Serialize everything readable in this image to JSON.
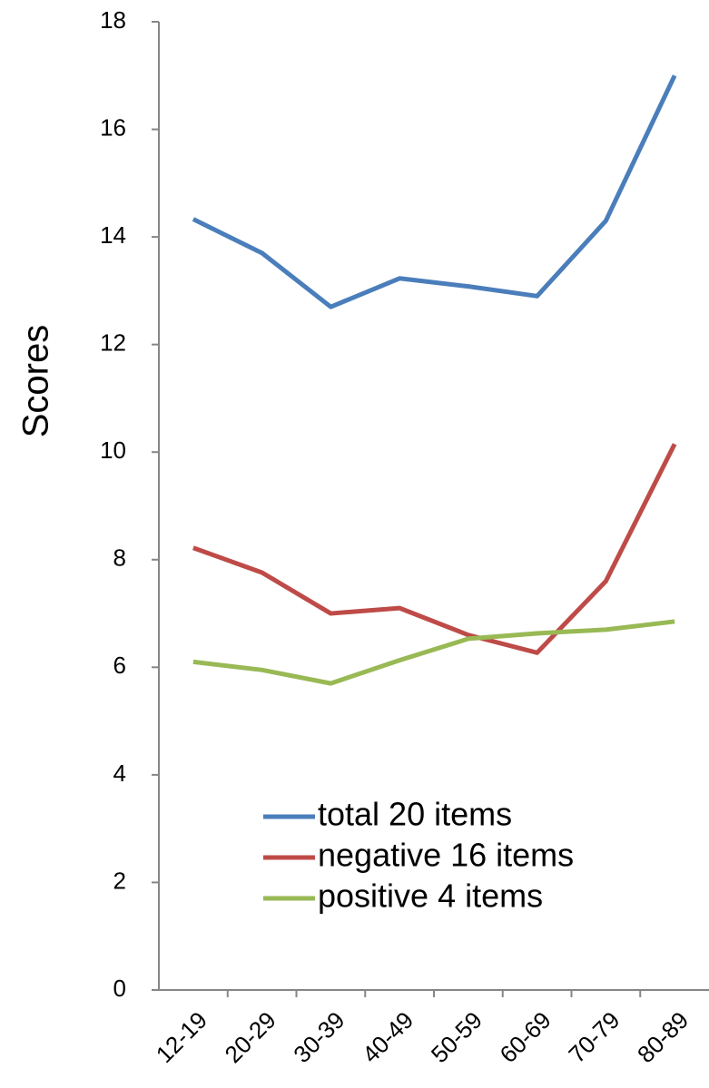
{
  "chart_data": {
    "type": "line",
    "y_label": "Scores",
    "categories": [
      "12-19",
      "20-29",
      "30-39",
      "40-49",
      "50-59",
      "60-69",
      "70-79",
      "80-89"
    ],
    "series": [
      {
        "name": "total 20 items",
        "color": "#4a7ebb",
        "values": [
          14.33,
          13.7,
          12.7,
          13.23,
          13.08,
          12.9,
          14.3,
          17.0
        ]
      },
      {
        "name": "negative 16 items",
        "color": "#be4b48",
        "values": [
          8.22,
          7.76,
          7.0,
          7.1,
          6.6,
          6.27,
          7.6,
          10.15
        ]
      },
      {
        "name": "positive 4 items",
        "color": "#98b954",
        "values": [
          6.1,
          5.95,
          5.7,
          6.13,
          6.53,
          6.63,
          6.7,
          6.85
        ]
      }
    ],
    "ylim": [
      0,
      18
    ],
    "yticks": [
      0,
      2,
      4,
      6,
      8,
      10,
      12,
      14,
      16,
      18
    ],
    "grid": false,
    "legend": "bottom"
  }
}
